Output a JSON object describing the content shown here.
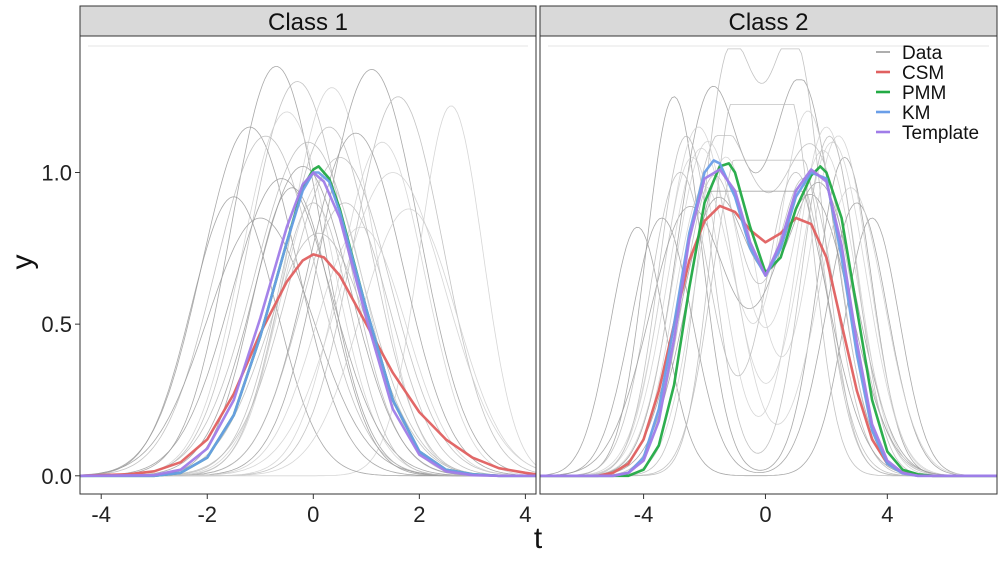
{
  "chart_data": {
    "type": "line",
    "xlabel": "t",
    "ylabel": "y",
    "ylim": [
      -0.06,
      1.45
    ],
    "yticks": [
      0.0,
      0.5,
      1.0
    ],
    "ytick_labels": [
      "0.0",
      "0.5",
      "1.0"
    ],
    "grid": false,
    "legend": {
      "placement": "top-right",
      "entries": [
        {
          "label": "Data",
          "color": "#8c8c8c"
        },
        {
          "label": "CSM",
          "color": "#e06060"
        },
        {
          "label": "PMM",
          "color": "#22aa44"
        },
        {
          "label": "KM",
          "color": "#6a9ee8"
        },
        {
          "label": "Template",
          "color": "#a07ce8"
        }
      ]
    },
    "panels": [
      {
        "title": "Class 1",
        "xlim": [
          -4.4,
          4.2
        ],
        "xticks": [
          -4,
          -2,
          0,
          2,
          4
        ],
        "xtick_labels": [
          "-4",
          "-2",
          "0",
          "2",
          "4"
        ],
        "data_curves": [
          {
            "c": -0.7,
            "a": 1.35,
            "w": 0.85
          },
          {
            "c": -0.3,
            "a": 1.3,
            "w": 0.9
          },
          {
            "c": 0.35,
            "a": 1.28,
            "w": 0.8
          },
          {
            "c": 1.1,
            "a": 1.34,
            "w": 0.9
          },
          {
            "c": 1.6,
            "a": 1.25,
            "w": 0.85
          },
          {
            "c": 2.6,
            "a": 1.22,
            "w": 0.6
          },
          {
            "c": -1.2,
            "a": 1.15,
            "w": 0.9
          },
          {
            "c": -0.9,
            "a": 1.12,
            "w": 0.95
          },
          {
            "c": -0.5,
            "a": 1.2,
            "w": 0.85
          },
          {
            "c": 0.8,
            "a": 1.13,
            "w": 0.9
          },
          {
            "c": 0.5,
            "a": 1.05,
            "w": 0.95
          },
          {
            "c": 1.3,
            "a": 1.1,
            "w": 0.8
          },
          {
            "c": -1.5,
            "a": 0.92,
            "w": 0.8
          },
          {
            "c": -0.1,
            "a": 1.1,
            "w": 1.0
          },
          {
            "c": 0.2,
            "a": 0.98,
            "w": 0.8
          },
          {
            "c": -0.4,
            "a": 0.95,
            "w": 0.75
          },
          {
            "c": 0.6,
            "a": 0.9,
            "w": 0.85
          },
          {
            "c": 1.8,
            "a": 0.88,
            "w": 0.9
          },
          {
            "c": -1.0,
            "a": 0.85,
            "w": 1.0
          },
          {
            "c": 0.1,
            "a": 0.8,
            "w": 0.95
          },
          {
            "c": 0.9,
            "a": 0.82,
            "w": 0.85
          },
          {
            "c": -0.2,
            "a": 1.02,
            "w": 0.9
          },
          {
            "c": 0.3,
            "a": 1.15,
            "w": 0.85
          },
          {
            "c": 1.5,
            "a": 1.0,
            "w": 1.0
          },
          {
            "c": -0.6,
            "a": 0.98,
            "w": 0.95
          },
          {
            "c": 0.0,
            "a": 0.9,
            "w": 0.7
          }
        ],
        "series": [
          {
            "name": "CSM",
            "color": "#e06060",
            "x": [
              -4.4,
              -3.5,
              -3.0,
              -2.5,
              -2.0,
              -1.5,
              -1.0,
              -0.5,
              -0.2,
              0.0,
              0.2,
              0.5,
              1.0,
              1.5,
              2.0,
              2.5,
              3.0,
              3.5,
              4.0,
              4.2
            ],
            "y": [
              0.0,
              0.005,
              0.015,
              0.045,
              0.12,
              0.27,
              0.47,
              0.64,
              0.71,
              0.73,
              0.72,
              0.66,
              0.5,
              0.34,
              0.21,
              0.12,
              0.06,
              0.025,
              0.01,
              0.005
            ]
          },
          {
            "name": "PMM",
            "color": "#22aa44",
            "x": [
              -4.4,
              -3.0,
              -2.5,
              -2.0,
              -1.5,
              -1.0,
              -0.5,
              -0.2,
              0.0,
              0.1,
              0.3,
              0.5,
              1.0,
              1.5,
              2.0,
              2.5,
              3.0,
              3.5,
              4.2
            ],
            "y": [
              0.0,
              0.0,
              0.01,
              0.06,
              0.2,
              0.46,
              0.77,
              0.95,
              1.01,
              1.02,
              0.98,
              0.88,
              0.55,
              0.25,
              0.08,
              0.02,
              0.005,
              0.0,
              0.0
            ]
          },
          {
            "name": "KM",
            "color": "#6a9ee8",
            "x": [
              -4.4,
              -3.0,
              -2.5,
              -2.0,
              -1.5,
              -1.0,
              -0.5,
              -0.2,
              0.0,
              0.1,
              0.3,
              0.5,
              1.0,
              1.5,
              2.0,
              2.5,
              3.0,
              3.5,
              4.2
            ],
            "y": [
              0.0,
              0.0,
              0.01,
              0.06,
              0.2,
              0.46,
              0.77,
              0.94,
              1.0,
              1.0,
              0.97,
              0.87,
              0.55,
              0.25,
              0.08,
              0.02,
              0.005,
              0.0,
              0.0
            ]
          },
          {
            "name": "Template",
            "color": "#a07ce8",
            "x": [
              -4.4,
              -3.0,
              -2.5,
              -2.0,
              -1.5,
              -1.0,
              -0.5,
              -0.2,
              0.0,
              0.2,
              0.5,
              1.0,
              1.5,
              2.0,
              2.5,
              3.0,
              3.5,
              4.2
            ],
            "y": [
              0.0,
              0.002,
              0.02,
              0.09,
              0.25,
              0.52,
              0.82,
              0.96,
              1.0,
              0.97,
              0.85,
              0.52,
              0.22,
              0.07,
              0.015,
              0.002,
              0.0,
              0.0
            ]
          }
        ]
      },
      {
        "title": "Class 2",
        "xlim": [
          -7.4,
          7.6
        ],
        "xticks": [
          -4,
          0,
          4
        ],
        "xtick_labels": [
          "-4",
          "0",
          "4"
        ],
        "data_curves": [
          {
            "m1": -1.8,
            "a1": 1.25,
            "m2": 1.2,
            "a2": 1.28,
            "w": 1.1
          },
          {
            "m1": -1.2,
            "a1": 1.35,
            "m2": 1.0,
            "a2": 1.38,
            "w": 0.9
          },
          {
            "m1": -2.4,
            "a1": 1.05,
            "m2": 2.0,
            "a2": 1.15,
            "w": 1.0
          },
          {
            "m1": -4.2,
            "a1": 0.82,
            "m2": 3.5,
            "a2": 0.85,
            "w": 0.9
          },
          {
            "m1": -1.5,
            "a1": 1.1,
            "m2": 1.6,
            "a2": 1.05,
            "w": 1.2
          },
          {
            "m1": -2.0,
            "a1": 0.95,
            "m2": 1.4,
            "a2": 1.2,
            "w": 1.0
          },
          {
            "m1": -3.0,
            "a1": 1.25,
            "m2": 2.6,
            "a2": 1.05,
            "w": 0.9
          },
          {
            "m1": -1.0,
            "a1": 1.2,
            "m2": 0.8,
            "a2": 1.18,
            "w": 0.8
          },
          {
            "m1": -2.2,
            "a1": 1.15,
            "m2": 2.2,
            "a2": 1.1,
            "w": 1.1
          },
          {
            "m1": -1.6,
            "a1": 0.9,
            "m2": 1.8,
            "a2": 0.95,
            "w": 1.2
          },
          {
            "m1": -2.8,
            "a1": 1.0,
            "m2": 1.0,
            "a2": 1.0,
            "w": 1.0
          },
          {
            "m1": -1.3,
            "a1": 1.05,
            "m2": 2.4,
            "a2": 1.12,
            "w": 1.0
          },
          {
            "m1": -2.5,
            "a1": 0.88,
            "m2": 1.5,
            "a2": 0.92,
            "w": 1.3
          },
          {
            "m1": -0.9,
            "a1": 1.0,
            "m2": 1.1,
            "a2": 1.02,
            "w": 0.9
          },
          {
            "m1": -1.9,
            "a1": 1.1,
            "m2": 1.9,
            "a2": 1.07,
            "w": 1.1
          },
          {
            "m1": -3.4,
            "a1": 0.85,
            "m2": 3.0,
            "a2": 0.9,
            "w": 1.0
          },
          {
            "m1": -1.7,
            "a1": 0.98,
            "m2": 1.3,
            "a2": 0.97,
            "w": 1.0
          },
          {
            "m1": -2.1,
            "a1": 1.08,
            "m2": 2.8,
            "a2": 0.95,
            "w": 1.1
          },
          {
            "m1": -1.4,
            "a1": 0.92,
            "m2": 0.9,
            "a2": 0.9,
            "w": 1.2
          },
          {
            "m1": -2.6,
            "a1": 1.12,
            "m2": 2.1,
            "a2": 1.12,
            "w": 0.9
          }
        ],
        "series": [
          {
            "name": "CSM",
            "color": "#e06060",
            "x": [
              -7.4,
              -5.5,
              -5.0,
              -4.5,
              -4.0,
              -3.5,
              -3.0,
              -2.5,
              -2.0,
              -1.5,
              -1.0,
              -0.5,
              0.0,
              0.5,
              1.0,
              1.5,
              2.0,
              2.5,
              3.0,
              3.5,
              4.0,
              4.5,
              5.0,
              5.5,
              7.6
            ],
            "y": [
              0.0,
              0.0,
              0.01,
              0.04,
              0.12,
              0.28,
              0.5,
              0.71,
              0.84,
              0.89,
              0.87,
              0.81,
              0.77,
              0.8,
              0.85,
              0.83,
              0.72,
              0.5,
              0.28,
              0.12,
              0.04,
              0.01,
              0.003,
              0.0,
              0.0
            ]
          },
          {
            "name": "PMM",
            "color": "#22aa44",
            "x": [
              -7.4,
              -4.5,
              -4.0,
              -3.5,
              -3.0,
              -2.5,
              -2.0,
              -1.5,
              -1.2,
              -1.0,
              -0.5,
              0.0,
              0.5,
              1.0,
              1.5,
              1.8,
              2.0,
              2.5,
              3.0,
              3.5,
              4.0,
              4.5,
              5.0,
              5.5,
              7.6
            ],
            "y": [
              0.0,
              0.0,
              0.02,
              0.1,
              0.3,
              0.62,
              0.9,
              1.02,
              1.03,
              1.0,
              0.82,
              0.67,
              0.72,
              0.88,
              0.99,
              1.02,
              1.0,
              0.85,
              0.55,
              0.25,
              0.08,
              0.02,
              0.005,
              0.0,
              0.0
            ]
          },
          {
            "name": "KM",
            "color": "#6a9ee8",
            "x": [
              -7.4,
              -5.0,
              -4.5,
              -4.0,
              -3.5,
              -3.0,
              -2.5,
              -2.0,
              -1.7,
              -1.5,
              -1.0,
              -0.5,
              0.0,
              0.5,
              1.0,
              1.5,
              2.0,
              2.5,
              3.0,
              3.5,
              4.0,
              4.5,
              5.0,
              7.6
            ],
            "y": [
              0.0,
              0.0,
              0.01,
              0.06,
              0.22,
              0.5,
              0.8,
              1.0,
              1.04,
              1.03,
              0.92,
              0.75,
              0.66,
              0.75,
              0.92,
              1.0,
              0.98,
              0.72,
              0.4,
              0.15,
              0.04,
              0.008,
              0.0,
              0.0
            ]
          },
          {
            "name": "Template",
            "color": "#a07ce8",
            "x": [
              -7.4,
              -5.0,
              -4.5,
              -4.0,
              -3.5,
              -3.0,
              -2.5,
              -2.0,
              -1.5,
              -1.0,
              -0.5,
              0.0,
              0.5,
              1.0,
              1.5,
              2.0,
              2.5,
              3.0,
              3.5,
              4.0,
              4.5,
              5.0,
              7.6
            ],
            "y": [
              0.0,
              0.0,
              0.01,
              0.05,
              0.18,
              0.45,
              0.78,
              0.98,
              1.01,
              0.94,
              0.77,
              0.66,
              0.77,
              0.94,
              1.01,
              0.97,
              0.76,
              0.44,
              0.17,
              0.05,
              0.01,
              0.0,
              0.0
            ]
          }
        ]
      }
    ]
  }
}
